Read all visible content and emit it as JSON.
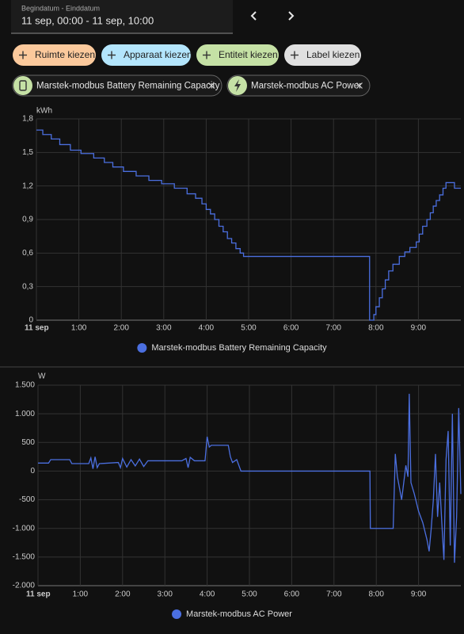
{
  "date_picker": {
    "label": "Begindatum - Einddatum",
    "value": "11 sep, 00:00 - 11 sep, 10:00"
  },
  "filters": [
    {
      "label": "Ruimte kiezen",
      "color": "#fbc99c"
    },
    {
      "label": "Apparaat kiezen",
      "color": "#b3e5fc"
    },
    {
      "label": "Entiteit kiezen",
      "color": "#c5e1a5"
    },
    {
      "label": "Label kiezen",
      "color": "#e0e0e0"
    }
  ],
  "entities": [
    "Marstek-modbus Battery Remaining Capacity",
    "Marstek-modbus AC Power"
  ],
  "chart_data": [
    {
      "type": "line",
      "step": true,
      "y_label": "kWh",
      "grid": true,
      "xlim": [
        0,
        10
      ],
      "ylim": [
        0,
        1.8
      ],
      "xticks": [
        {
          "value": 0,
          "label": "11 sep"
        },
        {
          "value": 1,
          "label": "1:00"
        },
        {
          "value": 2,
          "label": "2:00"
        },
        {
          "value": 3,
          "label": "3:00"
        },
        {
          "value": 4,
          "label": "4:00"
        },
        {
          "value": 5,
          "label": "5:00"
        },
        {
          "value": 6,
          "label": "6:00"
        },
        {
          "value": 7,
          "label": "7:00"
        },
        {
          "value": 8,
          "label": "8:00"
        },
        {
          "value": 9,
          "label": "9:00"
        }
      ],
      "yticks": [
        0,
        {
          "value": 0.3,
          "label": "0,3"
        },
        {
          "value": 0.6,
          "label": "0,6"
        },
        {
          "value": 0.9,
          "label": "0,9"
        },
        {
          "value": 1.2,
          "label": "1,2"
        },
        {
          "value": 1.5,
          "label": "1,5"
        },
        {
          "value": 1.8,
          "label": "1,8"
        }
      ],
      "x": [
        0,
        0.15,
        0.35,
        0.55,
        0.8,
        1.05,
        1.35,
        1.6,
        1.8,
        2.05,
        2.35,
        2.65,
        2.95,
        3.25,
        3.55,
        3.75,
        3.9,
        4.0,
        4.1,
        4.2,
        4.3,
        4.4,
        4.5,
        4.6,
        4.7,
        4.8,
        4.88,
        7.85,
        7.95,
        8.0,
        8.08,
        8.15,
        8.22,
        8.3,
        8.4,
        8.55,
        8.68,
        8.8,
        8.95,
        9.02,
        9.1,
        9.2,
        9.28,
        9.35,
        9.42,
        9.5,
        9.58,
        9.65,
        9.78,
        9.85,
        10
      ],
      "series": [
        {
          "name": "Marstek-modbus Battery Remaining Capacity",
          "color": "#4b6fe0",
          "values": [
            1.7,
            1.66,
            1.62,
            1.57,
            1.52,
            1.49,
            1.45,
            1.41,
            1.37,
            1.33,
            1.29,
            1.25,
            1.22,
            1.18,
            1.13,
            1.09,
            1.04,
            0.99,
            0.95,
            0.9,
            0.84,
            0.79,
            0.73,
            0.69,
            0.64,
            0.6,
            0.57,
            0.0,
            0.05,
            0.12,
            0.2,
            0.28,
            0.36,
            0.44,
            0.5,
            0.57,
            0.61,
            0.65,
            0.7,
            0.77,
            0.84,
            0.9,
            0.96,
            1.02,
            1.07,
            1.12,
            1.18,
            1.23,
            1.23,
            1.18,
            1.18
          ]
        }
      ]
    },
    {
      "type": "line",
      "step": false,
      "y_label": "W",
      "grid": true,
      "xlim": [
        0,
        10
      ],
      "ylim": [
        -2000,
        1500
      ],
      "xticks": [
        {
          "value": 0,
          "label": "11 sep"
        },
        {
          "value": 1,
          "label": "1:00"
        },
        {
          "value": 2,
          "label": "2:00"
        },
        {
          "value": 3,
          "label": "3:00"
        },
        {
          "value": 4,
          "label": "4:00"
        },
        {
          "value": 5,
          "label": "5:00"
        },
        {
          "value": 6,
          "label": "6:00"
        },
        {
          "value": 7,
          "label": "7:00"
        },
        {
          "value": 8,
          "label": "8:00"
        },
        {
          "value": 9,
          "label": "9:00"
        }
      ],
      "yticks": [
        {
          "value": -2000,
          "label": "-2.000"
        },
        {
          "value": -1500,
          "label": "-1.500"
        },
        {
          "value": -1000,
          "label": "-1.000"
        },
        -500,
        0,
        500,
        {
          "value": 1000,
          "label": "1.000"
        },
        {
          "value": 1500,
          "label": "1.500"
        }
      ],
      "x": [
        0,
        0.25,
        0.3,
        0.75,
        0.8,
        1.2,
        1.25,
        1.3,
        1.35,
        1.4,
        1.45,
        1.9,
        1.95,
        2.0,
        2.1,
        2.2,
        2.3,
        2.4,
        2.5,
        2.6,
        3.4,
        3.5,
        3.55,
        3.6,
        3.7,
        3.95,
        4.0,
        4.05,
        4.1,
        4.5,
        4.55,
        4.6,
        4.7,
        4.8,
        4.9,
        7.85,
        7.86,
        8.4,
        8.45,
        8.5,
        8.6,
        8.7,
        8.75,
        8.78,
        8.82,
        8.9,
        9.0,
        9.1,
        9.2,
        9.25,
        9.3,
        9.35,
        9.4,
        9.45,
        9.5,
        9.55,
        9.6,
        9.65,
        9.7,
        9.75,
        9.8,
        9.85,
        9.9,
        9.95,
        10
      ],
      "series": [
        {
          "name": "Marstek-modbus AC Power",
          "color": "#4b6fe0",
          "values": [
            140,
            140,
            200,
            200,
            130,
            130,
            230,
            40,
            250,
            60,
            130,
            150,
            60,
            220,
            70,
            200,
            90,
            210,
            80,
            180,
            180,
            220,
            60,
            240,
            180,
            180,
            600,
            420,
            450,
            450,
            250,
            150,
            200,
            0,
            0,
            0,
            -1000,
            -1000,
            300,
            -100,
            -500,
            100,
            -100,
            1350,
            -200,
            -400,
            -700,
            -900,
            -1200,
            -1400,
            -1000,
            -500,
            300,
            -800,
            -200,
            -900,
            -1550,
            200,
            700,
            -1300,
            1000,
            -1600,
            -800,
            1100,
            -400
          ]
        }
      ]
    }
  ]
}
